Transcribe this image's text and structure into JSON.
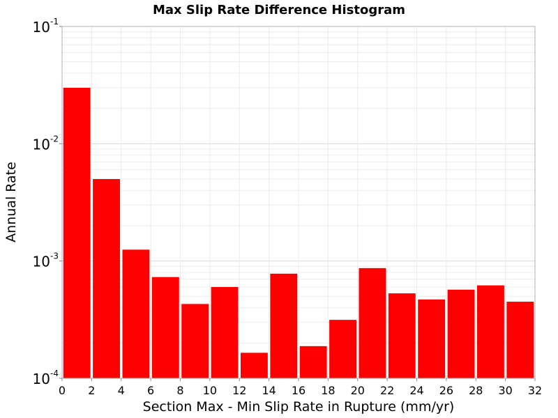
{
  "chart_data": {
    "type": "bar",
    "title": "Max Slip Rate Difference Histogram",
    "xlabel": "Section Max - Min Slip Rate in Rupture (mm/yr)",
    "ylabel": "Annual Rate",
    "yscale": "log",
    "xlim": [
      0,
      32
    ],
    "ylim": [
      0.0001,
      0.1
    ],
    "x_ticks": [
      "0",
      "2",
      "4",
      "6",
      "8",
      "10",
      "12",
      "14",
      "16",
      "18",
      "20",
      "22",
      "24",
      "26",
      "28",
      "30",
      "32"
    ],
    "y_ticks": [
      {
        "base": "10",
        "exp": "-4",
        "value": 0.0001
      },
      {
        "base": "10",
        "exp": "-3",
        "value": 0.001
      },
      {
        "base": "10",
        "exp": "-2",
        "value": 0.01
      },
      {
        "base": "10",
        "exp": "-1",
        "value": 0.1
      }
    ],
    "grid": true,
    "bar_color": "#ff0000",
    "bins": [
      {
        "x": 1,
        "value": 0.03
      },
      {
        "x": 3,
        "value": 0.005
      },
      {
        "x": 5,
        "value": 0.00125
      },
      {
        "x": 7,
        "value": 0.00073
      },
      {
        "x": 9,
        "value": 0.00043
      },
      {
        "x": 11,
        "value": 0.0006
      },
      {
        "x": 13,
        "value": 0.000165
      },
      {
        "x": 15,
        "value": 0.00078
      },
      {
        "x": 17,
        "value": 0.000188
      },
      {
        "x": 19,
        "value": 0.000315
      },
      {
        "x": 21,
        "value": 0.00087
      },
      {
        "x": 23,
        "value": 0.00053
      },
      {
        "x": 25,
        "value": 0.00047
      },
      {
        "x": 27,
        "value": 0.00057
      },
      {
        "x": 29,
        "value": 0.00062
      },
      {
        "x": 31,
        "value": 0.00045
      }
    ]
  }
}
